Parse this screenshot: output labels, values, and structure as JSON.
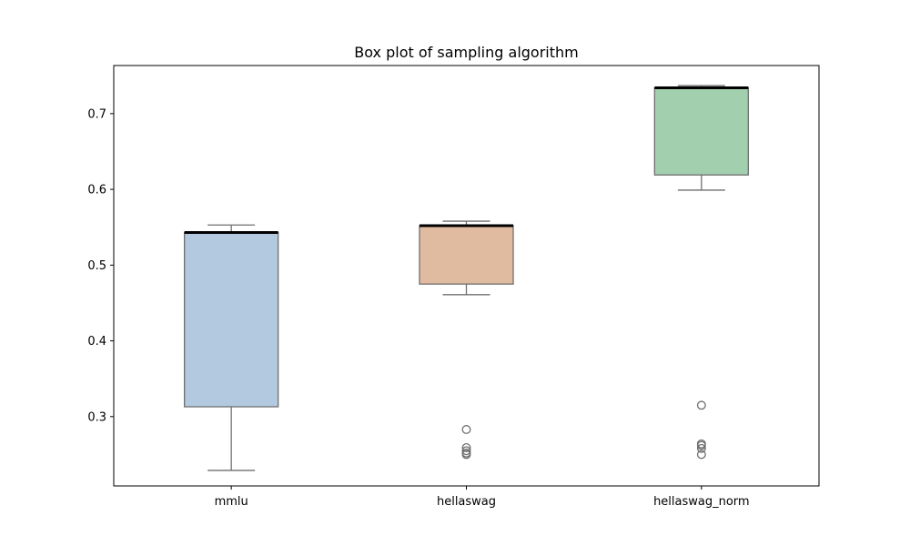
{
  "chart_data": {
    "type": "box",
    "title": "Box plot of sampling algorithm",
    "xlabel": "",
    "ylabel": "",
    "categories": [
      "mmlu",
      "hellaswag",
      "hellaswag_norm"
    ],
    "ylim": [
      0.2085,
      0.7635
    ],
    "yticks": [
      0.3,
      0.4,
      0.5,
      0.6,
      0.7
    ],
    "ytick_labels": [
      "0.3",
      "0.4",
      "0.5",
      "0.6",
      "0.7"
    ],
    "grid": false,
    "boxes": [
      {
        "name": "mmlu",
        "color": "#b3c9e0",
        "whisker_low": 0.229,
        "q1": 0.313,
        "median": 0.543,
        "q3": 0.543,
        "whisker_high": 0.553,
        "outliers": []
      },
      {
        "name": "hellaswag",
        "color": "#e1bb9f",
        "whisker_low": 0.461,
        "q1": 0.475,
        "median": 0.552,
        "q3": 0.552,
        "whisker_high": 0.558,
        "outliers": [
          0.283,
          0.259,
          0.255,
          0.252,
          0.25
        ]
      },
      {
        "name": "hellaswag_norm",
        "color": "#a2cfae",
        "whisker_low": 0.599,
        "q1": 0.619,
        "median": 0.734,
        "q3": 0.734,
        "whisker_high": 0.737,
        "outliers": [
          0.315,
          0.264,
          0.262,
          0.258,
          0.25
        ]
      }
    ],
    "style": {
      "edge_color": "#6f6f6f",
      "median_color": "#000000"
    }
  }
}
